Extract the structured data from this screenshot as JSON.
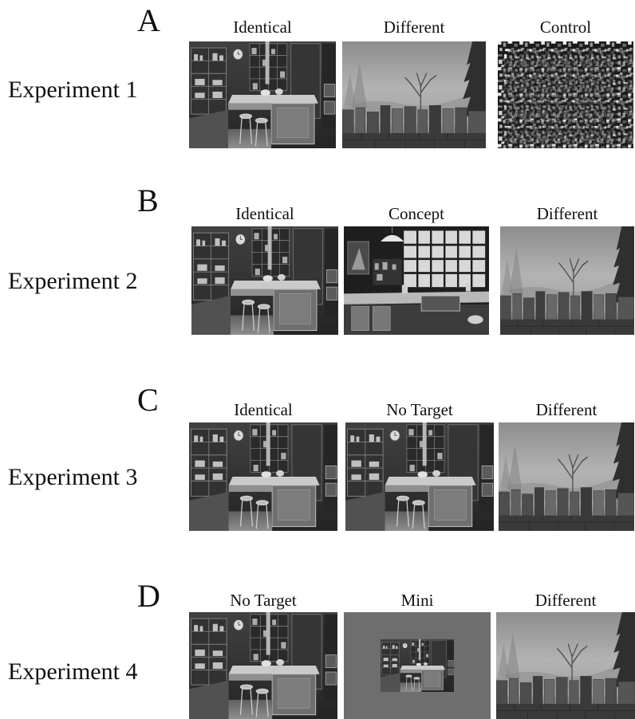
{
  "rows": [
    {
      "letter": "A",
      "experiment": "Experiment 1",
      "panels": [
        {
          "label": "Identical",
          "image": "kitchen-scene-image"
        },
        {
          "label": "Different",
          "image": "foggy-tree-scene-image"
        },
        {
          "label": "Control",
          "image": "scrambled-noise-image"
        }
      ]
    },
    {
      "letter": "B",
      "experiment": "Experiment 2",
      "panels": [
        {
          "label": "Identical",
          "image": "kitchen-scene-image"
        },
        {
          "label": "Concept",
          "image": "alternate-kitchen-scene-image"
        },
        {
          "label": "Different",
          "image": "foggy-tree-scene-image"
        }
      ]
    },
    {
      "letter": "C",
      "experiment": "Experiment 3",
      "panels": [
        {
          "label": "Identical",
          "image": "kitchen-scene-image"
        },
        {
          "label": "No Target",
          "image": "kitchen-scene-image"
        },
        {
          "label": "Different",
          "image": "foggy-tree-scene-image"
        }
      ]
    },
    {
      "letter": "D",
      "experiment": "Experiment 4",
      "panels": [
        {
          "label": "No Target",
          "image": "kitchen-scene-image"
        },
        {
          "label": "Mini",
          "image": "miniature-kitchen-on-gray-image"
        },
        {
          "label": "Different",
          "image": "foggy-tree-scene-image"
        }
      ]
    }
  ],
  "colors": {
    "background": "#ffffff",
    "text": "#111111",
    "mini_background": "#6e6e6e"
  }
}
